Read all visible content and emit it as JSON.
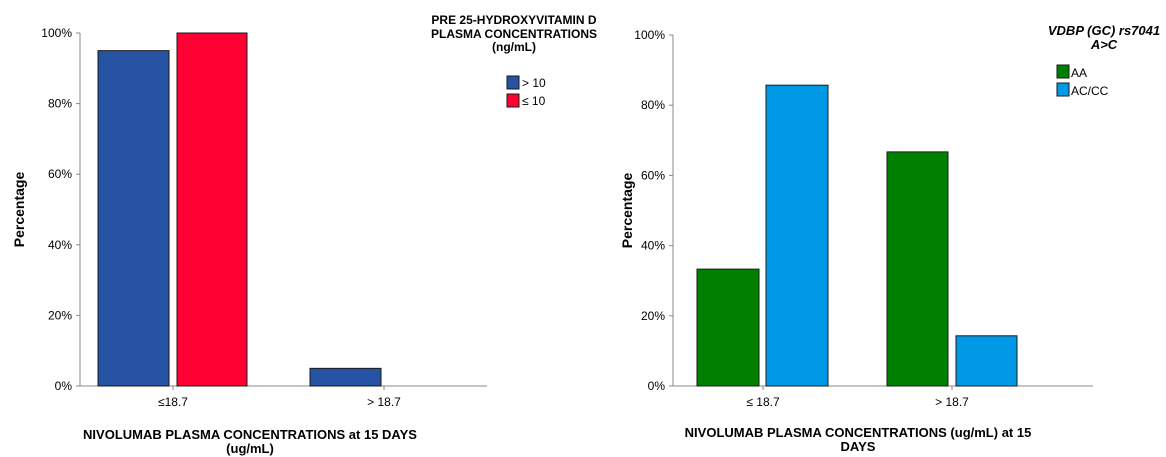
{
  "chart_data": [
    {
      "type": "bar",
      "xlabel": [
        "NIVOLUMAB PLASMA CONCENTRATIONS at 15 DAYS",
        "(ug/mL)"
      ],
      "ylabel": "Percentage",
      "ylim": [
        0,
        100
      ],
      "yticks": [
        "0%",
        "20%",
        "40%",
        "60%",
        "80%",
        "100%"
      ],
      "categories": [
        "≤18.7",
        "> 18.7"
      ],
      "legend_title": [
        "PRE 25-HYDROXYVITAMIN D",
        "PLASMA CONCENTRATIONS",
        "(ng/mL)"
      ],
      "legend_position": "top-right",
      "grid": false,
      "series": [
        {
          "name": "> 10",
          "color": "#2653a3",
          "values": [
            95,
            5
          ]
        },
        {
          "name": "≤ 10",
          "color": "#ff0033",
          "values": [
            100,
            0
          ]
        }
      ]
    },
    {
      "type": "bar",
      "xlabel": [
        "NIVOLUMAB PLASMA CONCENTRATIONS (ug/mL) at 15",
        "DAYS"
      ],
      "ylabel": "Percentage",
      "ylim": [
        0,
        100
      ],
      "yticks": [
        "0%",
        "20%",
        "40%",
        "60%",
        "80%",
        "100%"
      ],
      "categories": [
        "≤ 18.7",
        "> 18.7"
      ],
      "legend_title": [
        "VDBP (GC) rs7041",
        "A>C"
      ],
      "legend_position": "top-right",
      "grid": false,
      "series": [
        {
          "name": "AA",
          "color": "#008000",
          "values": [
            33.3,
            66.7
          ]
        },
        {
          "name": "AC/CC",
          "color": "#0099e6",
          "values": [
            85.7,
            14.3
          ]
        }
      ]
    }
  ]
}
